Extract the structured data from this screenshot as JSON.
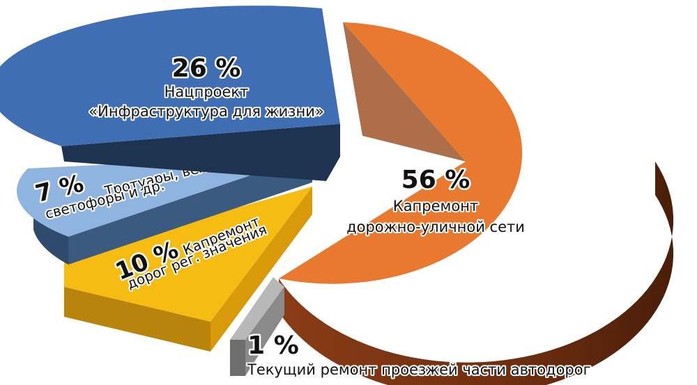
{
  "chart_data": {
    "type": "pie",
    "title": "",
    "slices": [
      {
        "key": "repair",
        "pct": "56 %",
        "value": 56,
        "label_lines": [
          "Капремонт",
          "дорожно-уличной сети"
        ],
        "color": "#E8792E",
        "side_color": "#7A3414"
      },
      {
        "key": "current",
        "pct": "1 %",
        "value": 1,
        "label_lines": [
          "Текущий ремонт проезжей части автодорог"
        ],
        "color": "#B8B8B8",
        "side_color": "#6E6E6E"
      },
      {
        "key": "regional",
        "pct": "10 %",
        "value": 10,
        "label_lines": [
          "Капремонт",
          "дорог рег. значения"
        ],
        "color": "#F7BC12",
        "side_color": "#A8780A"
      },
      {
        "key": "sidewalks",
        "pct": "7 %",
        "value": 7,
        "label_lines": [
          "Тротуары, велодорожки,",
          "светофоры и др."
        ],
        "color": "#8FB4DF",
        "side_color": "#2E4A6C"
      },
      {
        "key": "natproject",
        "pct": "26 %",
        "value": 26,
        "label_lines": [
          "Нацпроект",
          "«Инфраструктура для жизни»"
        ],
        "color": "#3F6EB5",
        "side_color": "#1E3350"
      }
    ]
  }
}
